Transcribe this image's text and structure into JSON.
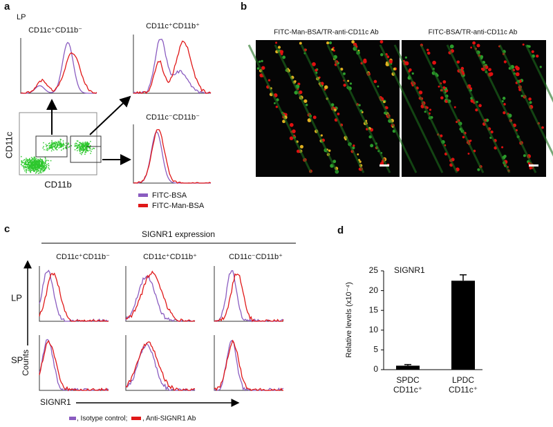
{
  "panels": {
    "a": {
      "label": "a",
      "region": "LP",
      "histograms": [
        "CD11c⁺CD11b⁻",
        "CD11c⁺CD11b⁺",
        "CD11c⁻CD11b⁻"
      ],
      "x_axis": "CD11b",
      "y_axis": "CD11c",
      "legend": [
        {
          "name": "FITC-BSA",
          "color": "#8a5cc0"
        },
        {
          "name": "FITC-Man-BSA",
          "color": "#e01818"
        }
      ]
    },
    "b": {
      "label": "b",
      "images": [
        "FITC-Man-BSA/TR-anti-CD11c Ab",
        "FITC-BSA/TR-anti-CD11c Ab"
      ]
    },
    "c": {
      "label": "c",
      "header": "SIGNR1 expression",
      "columns": [
        "CD11c⁺CD11b⁻",
        "CD11c⁺CD11b⁺",
        "CD11c⁻CD11b⁺"
      ],
      "rows": [
        "LP",
        "SP"
      ],
      "y_axis": "Counts",
      "x_axis": "SIGNR1",
      "legend": [
        {
          "name": ", Isotype control;",
          "color": "#8a5cc0"
        },
        {
          "name": ", Anti-SIGNR1 Ab",
          "color": "#e01818"
        }
      ]
    },
    "d": {
      "label": "d"
    }
  },
  "chart_data": {
    "type": "bar",
    "annotation": "SIGNR1",
    "y_label": "Relative levels (x10⁻⁴)",
    "categories": [
      [
        "SPDC",
        "CD11c⁺"
      ],
      [
        "LPDC",
        "CD11c⁺"
      ]
    ],
    "values": [
      1,
      22.5
    ],
    "errors": [
      0.3,
      1.5
    ],
    "color": "#000000",
    "ylim": [
      0,
      25
    ],
    "yticks": [
      0,
      5,
      10,
      15,
      20,
      25
    ]
  }
}
